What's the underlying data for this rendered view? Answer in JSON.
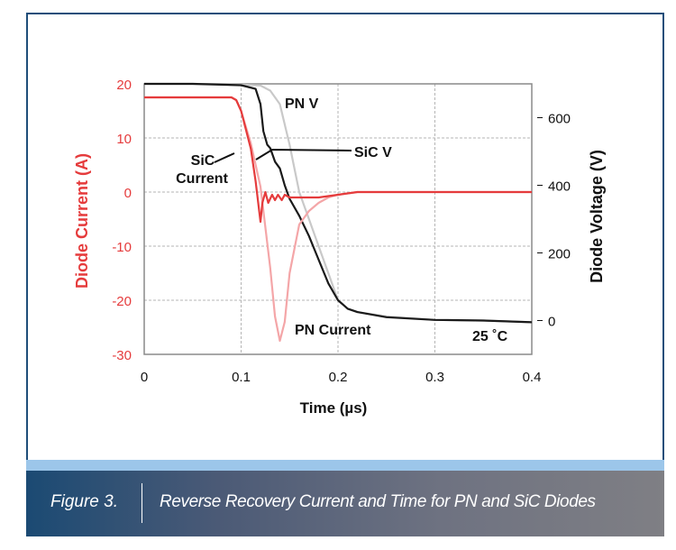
{
  "caption": {
    "figure_number": "Figure 3.",
    "title": "Reverse Recovery Current and Time for PN and SiC Diodes"
  },
  "chart_data": {
    "type": "line",
    "xlabel": "Time (µs)",
    "ylabel_left": "Diode Current (A)",
    "ylabel_right": "Diode Voltage (V)",
    "xlim": [
      0,
      0.4
    ],
    "ylim_left": [
      -30,
      20
    ],
    "ylim_right": [
      -100,
      700
    ],
    "x_ticks": [
      "0",
      "0.1",
      "0.2",
      "0.3",
      "0.4"
    ],
    "y_ticks_left": [
      "20",
      "10",
      "0",
      "-10",
      "-20",
      "-30"
    ],
    "y_ticks_right": [
      "600",
      "400",
      "200",
      "0"
    ],
    "grid": true,
    "annotations": {
      "pn_v": "PN V",
      "sic_v": "SiC V",
      "sic_current": [
        "SiC",
        "Current"
      ],
      "pn_current": "PN Current",
      "temperature": "25 ˚C"
    },
    "colors": {
      "sic_current": "#e53b3c",
      "pn_current": "#f4a6a8",
      "sic_v": "#1a1a1a",
      "pn_v": "#c9c9c9"
    },
    "series": [
      {
        "name": "PN V",
        "axis": "right",
        "x": [
          0,
          0.05,
          0.1,
          0.12,
          0.13,
          0.14,
          0.15,
          0.16,
          0.17,
          0.18,
          0.19,
          0.2,
          0.21,
          0.22,
          0.25,
          0.3,
          0.35,
          0.4
        ],
        "y": [
          700,
          700,
          698,
          695,
          680,
          640,
          520,
          380,
          300,
          220,
          140,
          60,
          35,
          25,
          12,
          2,
          0,
          -5
        ]
      },
      {
        "name": "SiC V",
        "axis": "right",
        "x": [
          0,
          0.05,
          0.1,
          0.115,
          0.12,
          0.123,
          0.127,
          0.13,
          0.135,
          0.14,
          0.145,
          0.15,
          0.16,
          0.17,
          0.18,
          0.19,
          0.2,
          0.21,
          0.22,
          0.25,
          0.3,
          0.35,
          0.4
        ],
        "y": [
          700,
          700,
          696,
          685,
          640,
          560,
          520,
          510,
          470,
          450,
          400,
          360,
          310,
          250,
          180,
          110,
          60,
          35,
          25,
          10,
          2,
          0,
          -5
        ]
      },
      {
        "name": "PN Current",
        "axis": "left",
        "x": [
          0,
          0.09,
          0.095,
          0.1,
          0.11,
          0.12,
          0.13,
          0.135,
          0.14,
          0.145,
          0.15,
          0.16,
          0.17,
          0.18,
          0.19,
          0.2,
          0.22,
          0.3,
          0.4
        ],
        "y": [
          17.5,
          17.5,
          17,
          15,
          9,
          1,
          -14,
          -23,
          -27.5,
          -24,
          -15,
          -6,
          -3.5,
          -2,
          -1,
          -0.5,
          0,
          0,
          0
        ]
      },
      {
        "name": "SiC Current",
        "axis": "left",
        "x": [
          0,
          0.09,
          0.095,
          0.1,
          0.11,
          0.115,
          0.12,
          0.122,
          0.125,
          0.128,
          0.132,
          0.135,
          0.138,
          0.142,
          0.145,
          0.15,
          0.155,
          0.16,
          0.18,
          0.2,
          0.22,
          0.3,
          0.4
        ],
        "y": [
          17.5,
          17.5,
          17,
          15,
          8,
          2,
          -5.5,
          -2,
          0,
          -2,
          -0.5,
          -1.5,
          -0.5,
          -1.5,
          -0.5,
          -1,
          -1,
          -1,
          -1,
          -0.5,
          0,
          0,
          0
        ]
      }
    ]
  }
}
